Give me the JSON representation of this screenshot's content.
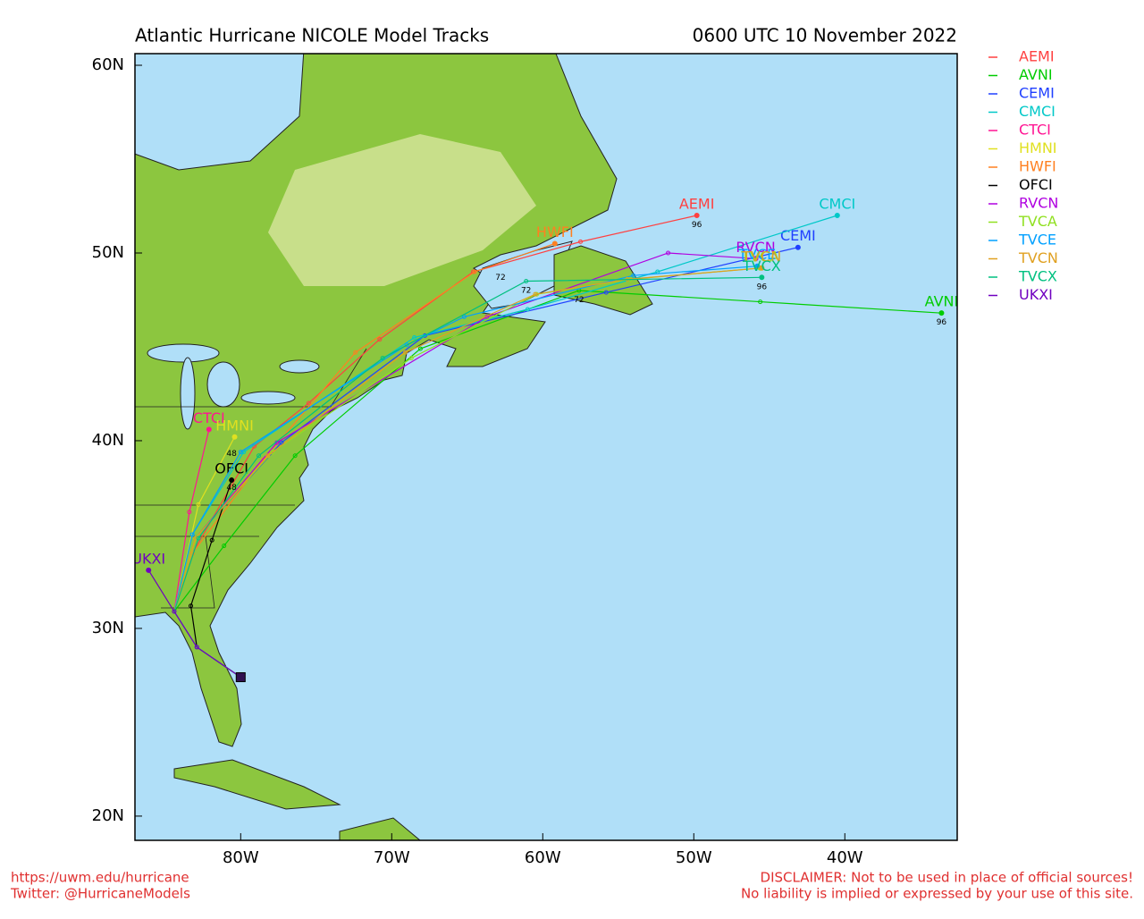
{
  "chart_data": {
    "type": "line",
    "title": "Atlantic Hurricane NICOLE Model Tracks",
    "subtitle": "0600 UTC 10 November 2022",
    "xlim": [
      -87,
      -32.56
    ],
    "ylim": [
      18.71,
      60.62
    ],
    "xticks": [
      {
        "value": -80,
        "label": "80W"
      },
      {
        "value": -70,
        "label": "70W"
      },
      {
        "value": -60,
        "label": "60W"
      },
      {
        "value": -50,
        "label": "50W"
      },
      {
        "value": -40,
        "label": "40W"
      }
    ],
    "yticks": [
      {
        "value": 20,
        "label": "20N"
      },
      {
        "value": 30,
        "label": "30N"
      },
      {
        "value": 40,
        "label": "40N"
      },
      {
        "value": 50,
        "label": "50N"
      },
      {
        "value": 60,
        "label": "60N"
      }
    ],
    "series": [
      {
        "name": "AEMI",
        "color": "#ff4040",
        "x": [
          -80.0,
          -82.9,
          -84.4,
          -83.2,
          -79.1,
          -75.5,
          -70.8,
          -64.6,
          -57.5,
          -49.8
        ],
        "values": [
          27.4,
          29.0,
          30.9,
          34.0,
          39.7,
          42.0,
          45.4,
          49.0,
          50.6,
          52.0
        ]
      },
      {
        "name": "AVNI",
        "color": "#00cc00",
        "x": [
          -80.0,
          -82.9,
          -84.4,
          -81.1,
          -76.4,
          -68.1,
          -57.6,
          -45.6,
          -33.6
        ],
        "values": [
          27.4,
          29.0,
          30.9,
          34.4,
          39.2,
          44.9,
          48.0,
          47.4,
          46.8
        ]
      },
      {
        "name": "CEMI",
        "color": "#2040ff",
        "x": [
          -80.0,
          -82.9,
          -84.4,
          -82.9,
          -77.3,
          -67.8,
          -55.8,
          -43.1
        ],
        "values": [
          27.4,
          29.0,
          30.9,
          34.9,
          39.9,
          45.6,
          47.9,
          50.3
        ]
      },
      {
        "name": "CMCI",
        "color": "#00c8c8",
        "x": [
          -80.0,
          -82.9,
          -84.4,
          -83.2,
          -79.8,
          -68.5,
          -61.0,
          -52.4,
          -40.5
        ],
        "values": [
          27.4,
          29.0,
          30.9,
          35.0,
          39.4,
          45.5,
          47.0,
          49.0,
          52.0
        ]
      },
      {
        "name": "CTCI",
        "color": "#ff1493",
        "x": [
          -80.0,
          -82.9,
          -84.4,
          -83.4,
          -82.1
        ],
        "values": [
          27.4,
          29.0,
          30.9,
          36.2,
          40.6
        ]
      },
      {
        "name": "HMNI",
        "color": "#e0e020",
        "x": [
          -80.0,
          -82.9,
          -84.4,
          -82.8,
          -80.4
        ],
        "values": [
          27.4,
          29.0,
          30.9,
          36.6,
          40.2
        ]
      },
      {
        "name": "HWFI",
        "color": "#ff8020",
        "x": [
          -80.0,
          -82.9,
          -84.4,
          -83.2,
          -78.5,
          -72.4,
          -64.5,
          -59.2
        ],
        "values": [
          27.4,
          29.0,
          30.9,
          34.0,
          39.0,
          44.7,
          49.0,
          50.5
        ]
      },
      {
        "name": "OFCI",
        "color": "#000000",
        "x": [
          -80.0,
          -82.9,
          -83.3,
          -81.9,
          -80.6
        ],
        "values": [
          27.4,
          29.0,
          31.2,
          34.7,
          37.9
        ]
      },
      {
        "name": "RVCN",
        "color": "#b000e0",
        "x": [
          -80.0,
          -82.9,
          -84.4,
          -82.9,
          -77.6,
          -63.7,
          -51.7,
          -45.9
        ],
        "values": [
          27.4,
          29.0,
          30.9,
          34.9,
          39.9,
          46.6,
          50.0,
          49.7
        ]
      },
      {
        "name": "TVCA",
        "color": "#90e020",
        "x": [
          -80.0,
          -82.9,
          -84.4,
          -82.9,
          -77.9,
          -68.7,
          -60.4,
          -54.2,
          -45.6
        ],
        "values": [
          27.4,
          29.0,
          30.9,
          34.9,
          39.4,
          44.4,
          47.8,
          48.6,
          49.2
        ]
      },
      {
        "name": "TVCE",
        "color": "#00a0ff",
        "x": [
          -80.0,
          -82.9,
          -84.4,
          -83.2,
          -80.0,
          -69.0,
          -65.2,
          -54.0,
          -45.8
        ],
        "values": [
          27.4,
          29.0,
          30.9,
          35.0,
          39.4,
          45.1,
          46.6,
          48.8,
          49.3
        ]
      },
      {
        "name": "TVCN",
        "color": "#e0a020",
        "x": [
          -80.0,
          -82.9,
          -84.4,
          -83.0,
          -78.2,
          -69.1,
          -60.5,
          -54.4,
          -45.5
        ],
        "values": [
          27.4,
          29.0,
          30.9,
          34.8,
          39.2,
          44.7,
          47.8,
          48.6,
          49.2
        ]
      },
      {
        "name": "TVCX",
        "color": "#00c080",
        "x": [
          -80.0,
          -82.9,
          -84.4,
          -82.8,
          -78.8,
          -70.6,
          -61.1,
          -45.5
        ],
        "values": [
          27.4,
          29.0,
          30.9,
          34.8,
          39.2,
          44.4,
          48.5,
          48.7
        ]
      },
      {
        "name": "UKXI",
        "color": "#7000c0",
        "x": [
          -80.0,
          -82.9,
          -84.4,
          -86.1
        ],
        "values": [
          27.4,
          29.0,
          30.9,
          33.1
        ]
      }
    ],
    "annotations": [
      {
        "text": "96",
        "x": -49.8,
        "y": 51.5
      },
      {
        "text": "72",
        "x": -62.8,
        "y": 48.7
      },
      {
        "text": "96",
        "x": -33.6,
        "y": 46.3
      },
      {
        "text": "72",
        "x": -61.1,
        "y": 48.0
      },
      {
        "text": "96",
        "x": -45.5,
        "y": 48.2
      },
      {
        "text": "72",
        "x": -57.6,
        "y": 47.5
      },
      {
        "text": "48",
        "x": -80.6,
        "y": 39.3
      },
      {
        "text": "48",
        "x": -80.6,
        "y": 37.5
      }
    ],
    "footer_left": [
      "https://uwm.edu/hurricane",
      "Twitter: @HurricaneModels"
    ],
    "footer_right": [
      "DISCLAIMER: Not to be used in place of official sources!",
      "No liability is implied or expressed by your use of this site."
    ]
  }
}
